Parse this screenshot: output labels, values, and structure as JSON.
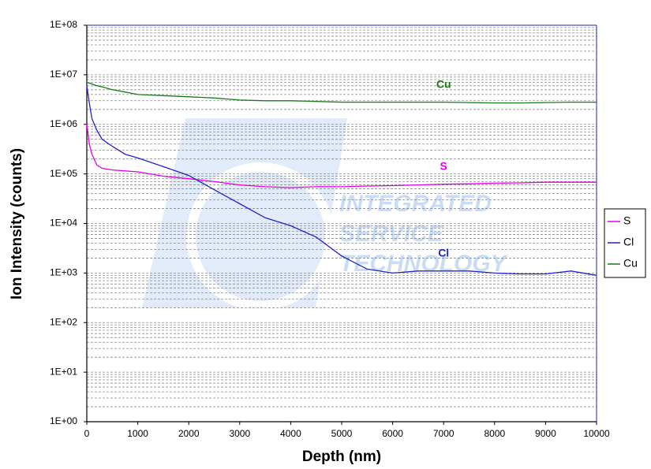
{
  "chart_data": {
    "type": "line",
    "xlabel": "Depth (nm)",
    "ylabel": "Ion Intensity (counts)",
    "watermark": [
      "INTEGRATED",
      "SERVICE",
      "TECHNOLOGY"
    ],
    "x": [
      0,
      50,
      100,
      200,
      300,
      500,
      750,
      1000,
      1500,
      2000,
      2500,
      3000,
      3500,
      4000,
      4500,
      5000,
      5500,
      6000,
      6500,
      7000,
      7500,
      8000,
      8500,
      9000,
      9500,
      10000
    ],
    "series": [
      {
        "name": "S",
        "color": "#e600e6",
        "values": [
          1000000,
          400000,
          250000,
          150000,
          130000,
          120000,
          115000,
          110000,
          90000,
          80000,
          70000,
          60000,
          55000,
          53000,
          55000,
          55000,
          57000,
          58000,
          60000,
          62000,
          63000,
          65000,
          66000,
          68000,
          68000,
          68000
        ]
      },
      {
        "name": "Cl",
        "color": "#2222cc",
        "values": [
          6000000,
          2700000,
          1300000,
          750000,
          500000,
          360000,
          250000,
          210000,
          140000,
          93000,
          48000,
          25000,
          13000,
          9000,
          5300,
          2200,
          1200,
          1000,
          1100,
          1100,
          1100,
          1000,
          960,
          960,
          1100,
          900
        ]
      },
      {
        "name": "Cu",
        "color": "#1a7a1a",
        "values": [
          7000000,
          6800000,
          6500000,
          6000000,
          5700000,
          5000000,
          4500000,
          4000000,
          3800000,
          3600000,
          3400000,
          3100000,
          3000000,
          3000000,
          2900000,
          2800000,
          2800000,
          2800000,
          2800000,
          2800000,
          2750000,
          2700000,
          2700000,
          2750000,
          2800000,
          2800000
        ]
      }
    ],
    "xlim": [
      0,
      10000
    ],
    "xticks": [
      0,
      1000,
      2000,
      3000,
      4000,
      5000,
      6000,
      7000,
      8000,
      9000,
      10000
    ],
    "ylim": [
      1,
      100000000
    ],
    "yscale": "log",
    "yticks": [
      {
        "value": 1,
        "label": "1E+00"
      },
      {
        "value": 10,
        "label": "1E+01"
      },
      {
        "value": 100,
        "label": "1E+02"
      },
      {
        "value": 1000,
        "label": "1E+03"
      },
      {
        "value": 10000,
        "label": "1E+04"
      },
      {
        "value": 100000,
        "label": "1E+05"
      },
      {
        "value": 1000000,
        "label": "1E+06"
      },
      {
        "value": 10000000,
        "label": "1E+07"
      },
      {
        "value": 100000000,
        "label": "1E+08"
      }
    ],
    "grid": true,
    "minor_grid": true,
    "legend": "right"
  }
}
